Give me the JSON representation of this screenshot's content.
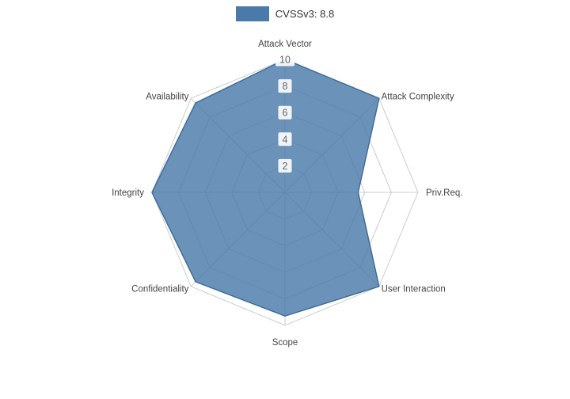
{
  "chart_data": {
    "type": "radar",
    "legend_label": "CVSSv3: 8.8",
    "legend_position": "top",
    "axes": [
      "Attack Vector",
      "Attack Complexity",
      "Priv.Req.",
      "User Interaction",
      "Scope",
      "Confidentiality",
      "Integrity",
      "Availability"
    ],
    "values": [
      10,
      10,
      5.5,
      10,
      9.3,
      9.5,
      10,
      9.5
    ],
    "ticks": [
      2,
      4,
      6,
      8,
      10
    ],
    "rmax": 10,
    "grid": true,
    "colors": {
      "fill": "#4a7aa9",
      "stroke": "#3f6d99",
      "grid": "#cccccc",
      "axis_label": "#444444",
      "tick_label": "#666666",
      "tick_bg": "#ffffff"
    }
  }
}
